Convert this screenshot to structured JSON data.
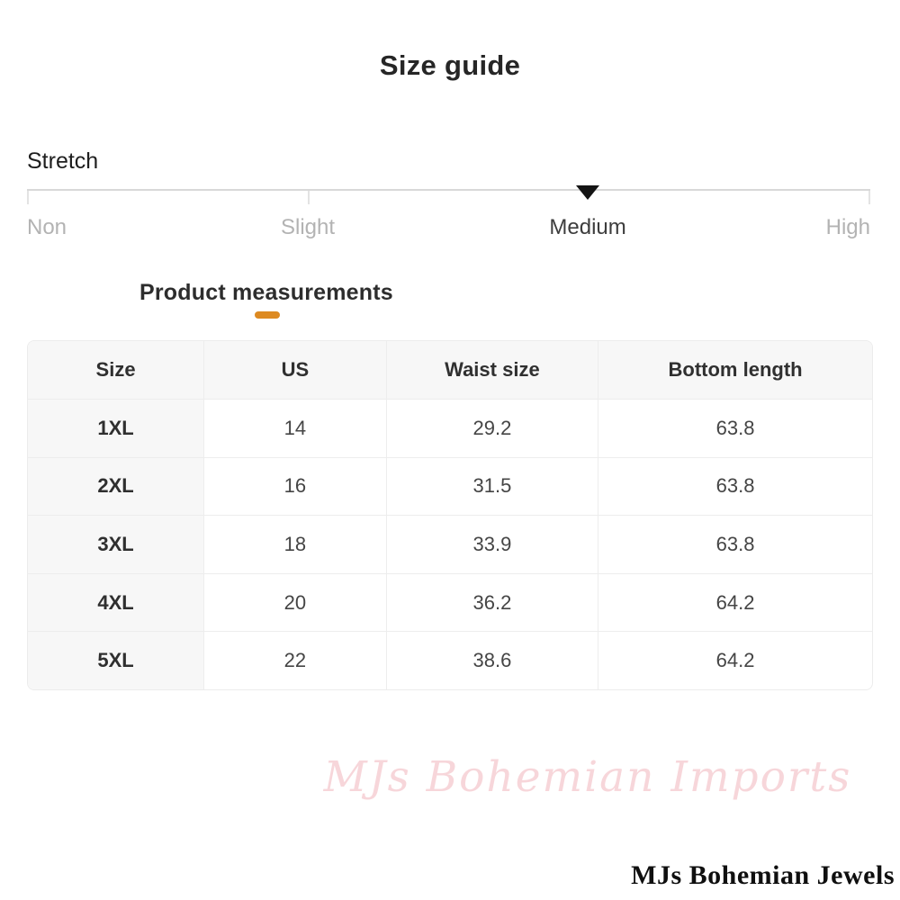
{
  "page": {
    "title": "Size guide"
  },
  "colors": {
    "accent": "#DD8A21",
    "marker": "#141414",
    "track": "#D8D8D8",
    "muted_label": "#B3B3B3",
    "active_label": "#3D3D3D",
    "header_bg": "#F7F7F7",
    "border": "#EDEDED",
    "watermark_pink": "#F7D6DA"
  },
  "slider": {
    "label": "Stretch",
    "selected": "Medium",
    "options": [
      "Non",
      "Slight",
      "Medium",
      "High"
    ],
    "marker_icon": "triangle-down"
  },
  "measurements_tab": {
    "label": "Product measurements"
  },
  "table": {
    "headers": [
      "Size",
      "US",
      "Waist size",
      "Bottom length"
    ],
    "rows": [
      {
        "size": "1XL",
        "us": "14",
        "waist": "29.2",
        "bottom": "63.8"
      },
      {
        "size": "2XL",
        "us": "16",
        "waist": "31.5",
        "bottom": "63.8"
      },
      {
        "size": "3XL",
        "us": "18",
        "waist": "33.9",
        "bottom": "63.8"
      },
      {
        "size": "4XL",
        "us": "20",
        "waist": "36.2",
        "bottom": "64.2"
      },
      {
        "size": "5XL",
        "us": "22",
        "waist": "38.6",
        "bottom": "64.2"
      }
    ]
  },
  "watermark": {
    "text": "MJs Bohemian Imports"
  },
  "footer": {
    "brand": "MJs Bohemian Jewels"
  }
}
